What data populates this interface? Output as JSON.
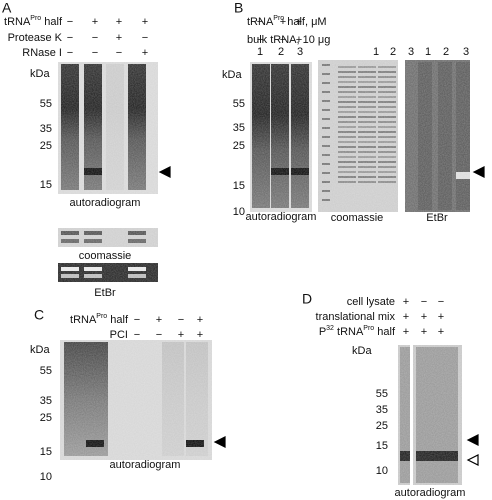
{
  "panels": [
    {
      "label": "A",
      "conditions": [
        {
          "name": [
            "tRNA",
            "Pro",
            " half"
          ],
          "values": [
            "−",
            "+",
            "+",
            "+"
          ]
        },
        {
          "name": [
            "Protease K"
          ],
          "values": [
            "−",
            "−",
            "+",
            "−"
          ]
        },
        {
          "name": [
            "RNase I"
          ],
          "values": [
            "−",
            "−",
            "−",
            "+"
          ]
        }
      ],
      "ladder": {
        "unit": "kDa",
        "marks": [
          55,
          35,
          25,
          15
        ]
      },
      "gels": [
        {
          "caption": "autoradiogram"
        },
        {
          "caption": "coomassie"
        },
        {
          "caption": "EtBr"
        }
      ]
    },
    {
      "label": "B",
      "conditions": [
        {
          "name": [
            "tRNA",
            "Pro",
            " half, μM"
          ],
          "values": [
            "−",
            "+",
            "+"
          ]
        },
        {
          "name": [
            "bulk tRNA, 10 μg"
          ],
          "values": [
            "−",
            "−",
            "+"
          ]
        }
      ],
      "ladder": {
        "unit": "kDa",
        "marks": [
          55,
          35,
          25,
          15,
          10
        ]
      },
      "gels": [
        {
          "lanes": [
            "1",
            "2",
            "3"
          ],
          "caption": "autoradiogram"
        },
        {
          "lanes": [
            "1",
            "2",
            "3"
          ],
          "caption": "coomassie"
        },
        {
          "lanes": [
            "1",
            "2",
            "3"
          ],
          "caption": "EtBr"
        }
      ]
    },
    {
      "label": "C",
      "conditions": [
        {
          "name": [
            "tRNA",
            "Pro",
            " half"
          ],
          "values": [
            "−",
            "+",
            "−",
            "+"
          ]
        },
        {
          "name": [
            "PCI"
          ],
          "values": [
            "−",
            "−",
            "+",
            "+"
          ]
        }
      ],
      "ladder": {
        "unit": "kDa",
        "marks": [
          55,
          35,
          25,
          15,
          10
        ]
      },
      "gels": [
        {
          "caption": "autoradiogram"
        }
      ]
    },
    {
      "label": "D",
      "conditions": [
        {
          "name": [
            "cell lysate"
          ],
          "values": [
            "+",
            "−",
            "−"
          ]
        },
        {
          "name": [
            "translational mix"
          ],
          "values": [
            "+",
            "+",
            "+"
          ]
        },
        {
          "name": [
            "P",
            "32",
            " tRNA",
            "Pro",
            " half"
          ],
          "values": [
            "+",
            "+",
            "+"
          ]
        }
      ],
      "ladder": {
        "unit": "kDa",
        "marks": [
          55,
          35,
          25,
          15,
          10
        ]
      },
      "gels": [
        {
          "caption": "autoradiogram"
        }
      ]
    }
  ]
}
